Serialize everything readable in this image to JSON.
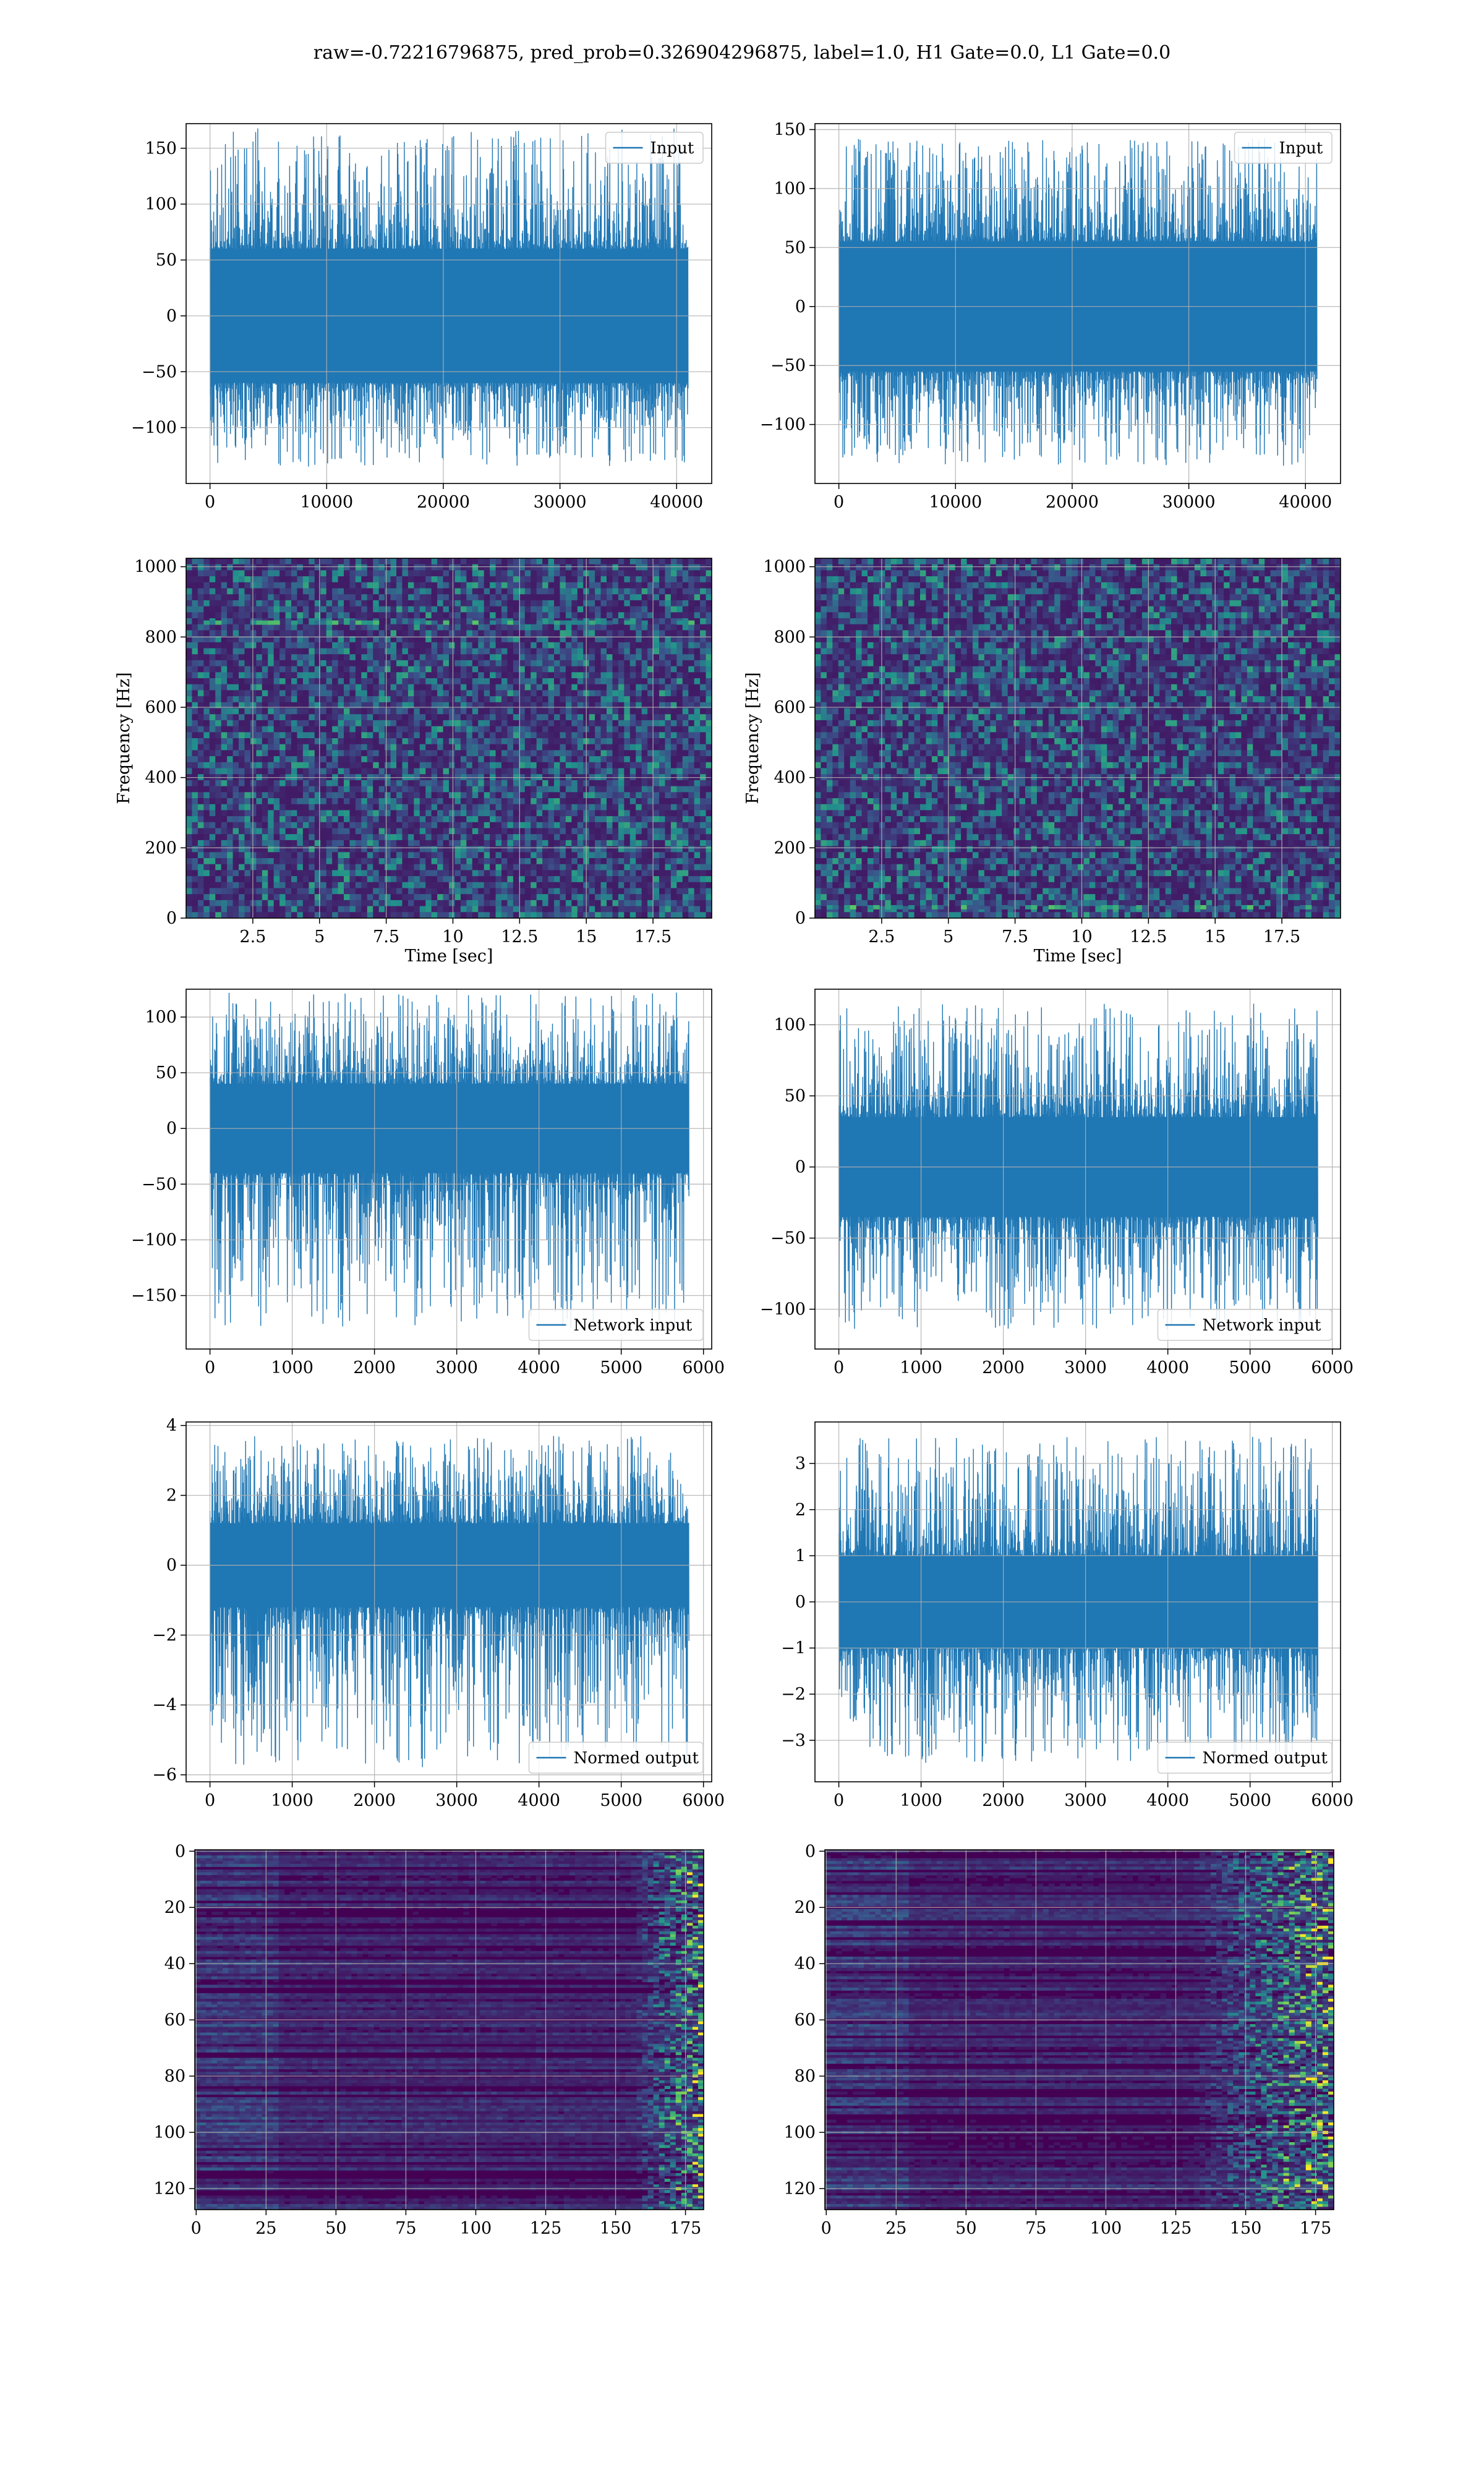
{
  "title": "raw=-0.72216796875, pred_prob=0.326904296875, label=1.0, H1 Gate=0.0, L1 Gate=0.0",
  "colors": {
    "series": "#1f77b4",
    "grid": "#b0b0b0",
    "viridis_low": "#440154",
    "viridis_high": "#fde725"
  },
  "chart_data": [
    {
      "id": "input-h1",
      "type": "line",
      "legend": "Input",
      "legend_loc": "upper-right",
      "ylabel": "",
      "xlabel": "",
      "xlim": [
        -2048,
        43008
      ],
      "ylim": [
        -150,
        172
      ],
      "xticks": [
        0,
        10000,
        20000,
        30000,
        40000
      ],
      "yticks": [
        -100,
        -50,
        0,
        50,
        100,
        150
      ],
      "data_x_range": [
        0,
        40960
      ],
      "band": [
        -60,
        60
      ],
      "envelope": [
        -135,
        168
      ],
      "grid": true
    },
    {
      "id": "input-l1",
      "type": "line",
      "legend": "Input",
      "legend_loc": "upper-right",
      "ylabel": "",
      "xlabel": "",
      "xlim": [
        -2048,
        43008
      ],
      "ylim": [
        -150,
        155
      ],
      "xticks": [
        0,
        10000,
        20000,
        30000,
        40000
      ],
      "yticks": [
        -100,
        -50,
        0,
        50,
        100,
        150
      ],
      "data_x_range": [
        0,
        40960
      ],
      "band": [
        -55,
        55
      ],
      "envelope": [
        -135,
        143
      ],
      "grid": true
    },
    {
      "id": "spec-h1",
      "type": "heatmap",
      "legend": "",
      "ylabel": "Frequency [Hz]",
      "xlabel": "Time [sec]",
      "xlim": [
        0,
        19.7
      ],
      "ylim": [
        0,
        1024
      ],
      "xticks": [
        2.5,
        5.0,
        7.5,
        10.0,
        12.5,
        15.0,
        17.5
      ],
      "yticks": [
        0,
        200,
        400,
        600,
        800,
        1000
      ],
      "colormap": "viridis",
      "lines": [
        840
      ],
      "grid": true
    },
    {
      "id": "spec-l1",
      "type": "heatmap",
      "legend": "",
      "ylabel": "Frequency [Hz]",
      "xlabel": "Time [sec]",
      "xlim": [
        0,
        19.7
      ],
      "ylim": [
        0,
        1024
      ],
      "xticks": [
        2.5,
        5.0,
        7.5,
        10.0,
        12.5,
        15.0,
        17.5
      ],
      "yticks": [
        0,
        200,
        400,
        600,
        800,
        1000
      ],
      "colormap": "viridis",
      "lines": [
        30
      ],
      "grid": true
    },
    {
      "id": "net-h1",
      "type": "line",
      "legend": "Network input",
      "legend_loc": "lower-right",
      "ylabel": "",
      "xlabel": "",
      "xlim": [
        -290,
        6100
      ],
      "ylim": [
        -198,
        125
      ],
      "xticks": [
        0,
        1000,
        2000,
        3000,
        4000,
        5000,
        6000
      ],
      "yticks": [
        -150,
        -100,
        -50,
        0,
        50,
        100
      ],
      "data_x_range": [
        0,
        5820
      ],
      "band": [
        -40,
        40
      ],
      "envelope": [
        -180,
        122
      ],
      "grid": true
    },
    {
      "id": "net-l1",
      "type": "line",
      "legend": "Network input",
      "legend_loc": "lower-right",
      "ylabel": "",
      "xlabel": "",
      "xlim": [
        -290,
        6100
      ],
      "ylim": [
        -128,
        125
      ],
      "xticks": [
        0,
        1000,
        2000,
        3000,
        4000,
        5000,
        6000
      ],
      "yticks": [
        -100,
        -50,
        0,
        50,
        100
      ],
      "data_x_range": [
        0,
        5820
      ],
      "band": [
        -35,
        35
      ],
      "envelope": [
        -115,
        115
      ],
      "grid": true
    },
    {
      "id": "norm-h1",
      "type": "line",
      "legend": "Normed output",
      "legend_loc": "lower-right",
      "ylabel": "",
      "xlabel": "",
      "xlim": [
        -290,
        6100
      ],
      "ylim": [
        -6.2,
        4.1
      ],
      "xticks": [
        0,
        1000,
        2000,
        3000,
        4000,
        5000,
        6000
      ],
      "yticks": [
        -6,
        -4,
        -2,
        0,
        2,
        4
      ],
      "data_x_range": [
        0,
        5820
      ],
      "band": [
        -1.2,
        1.2
      ],
      "envelope": [
        -5.8,
        3.7
      ],
      "grid": true
    },
    {
      "id": "norm-l1",
      "type": "line",
      "legend": "Normed output",
      "legend_loc": "lower-right",
      "ylabel": "",
      "xlabel": "",
      "xlim": [
        -290,
        6100
      ],
      "ylim": [
        -3.9,
        3.9
      ],
      "xticks": [
        0,
        1000,
        2000,
        3000,
        4000,
        5000,
        6000
      ],
      "yticks": [
        -3,
        -2,
        -1,
        0,
        1,
        2,
        3
      ],
      "data_x_range": [
        0,
        5820
      ],
      "band": [
        -1.0,
        1.0
      ],
      "envelope": [
        -3.5,
        3.6
      ],
      "grid": true
    },
    {
      "id": "feat-h1",
      "type": "heatmap",
      "legend": "",
      "ylabel": "",
      "xlabel": "",
      "xlim": [
        -0.5,
        181.5
      ],
      "ylim": [
        127.5,
        -0.5
      ],
      "xticks": [
        0,
        25,
        50,
        75,
        100,
        125,
        150,
        175
      ],
      "yticks": [
        0,
        20,
        40,
        60,
        80,
        100,
        120
      ],
      "colormap": "viridis",
      "bright_from": 155,
      "grid": true
    },
    {
      "id": "feat-l1",
      "type": "heatmap",
      "legend": "",
      "ylabel": "",
      "xlabel": "",
      "xlim": [
        -0.5,
        181.5
      ],
      "ylim": [
        127.5,
        -0.5
      ],
      "xticks": [
        0,
        25,
        50,
        75,
        100,
        125,
        150,
        175
      ],
      "yticks": [
        0,
        20,
        40,
        60,
        80,
        100,
        120
      ],
      "colormap": "viridis",
      "bright_from": 130,
      "grid": true
    }
  ]
}
